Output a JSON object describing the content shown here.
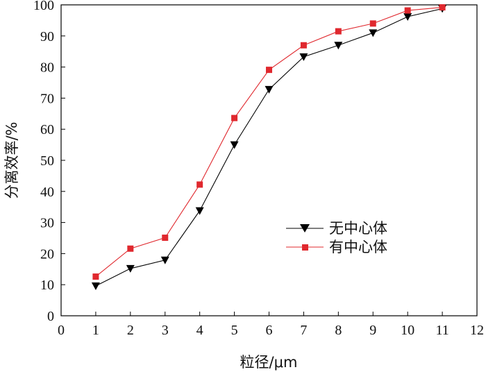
{
  "chart_data": {
    "type": "line",
    "title": "",
    "xlabel": "粒径/μm",
    "ylabel": "分离效率/%",
    "xlim": [
      0,
      12
    ],
    "ylim": [
      0,
      100
    ],
    "xticks": [
      0,
      1,
      2,
      3,
      4,
      5,
      6,
      7,
      8,
      9,
      10,
      11,
      12
    ],
    "yticks": [
      0,
      10,
      20,
      30,
      40,
      50,
      60,
      70,
      80,
      90,
      100
    ],
    "grid": false,
    "legend_position": "center-right",
    "x": [
      1,
      2,
      3,
      4,
      5,
      6,
      7,
      8,
      9,
      10,
      11
    ],
    "series": [
      {
        "name": "无中心体",
        "marker": "triangle-down",
        "color": "#000000",
        "values": [
          9.6,
          15.2,
          17.9,
          33.8,
          55.0,
          72.8,
          83.3,
          87.0,
          91.0,
          96.2,
          98.8
        ]
      },
      {
        "name": "有中心体",
        "marker": "square",
        "color": "#e0282e",
        "values": [
          12.6,
          21.6,
          25.1,
          42.2,
          63.6,
          79.1,
          87.0,
          91.5,
          94.0,
          98.2,
          99.2
        ]
      }
    ]
  }
}
